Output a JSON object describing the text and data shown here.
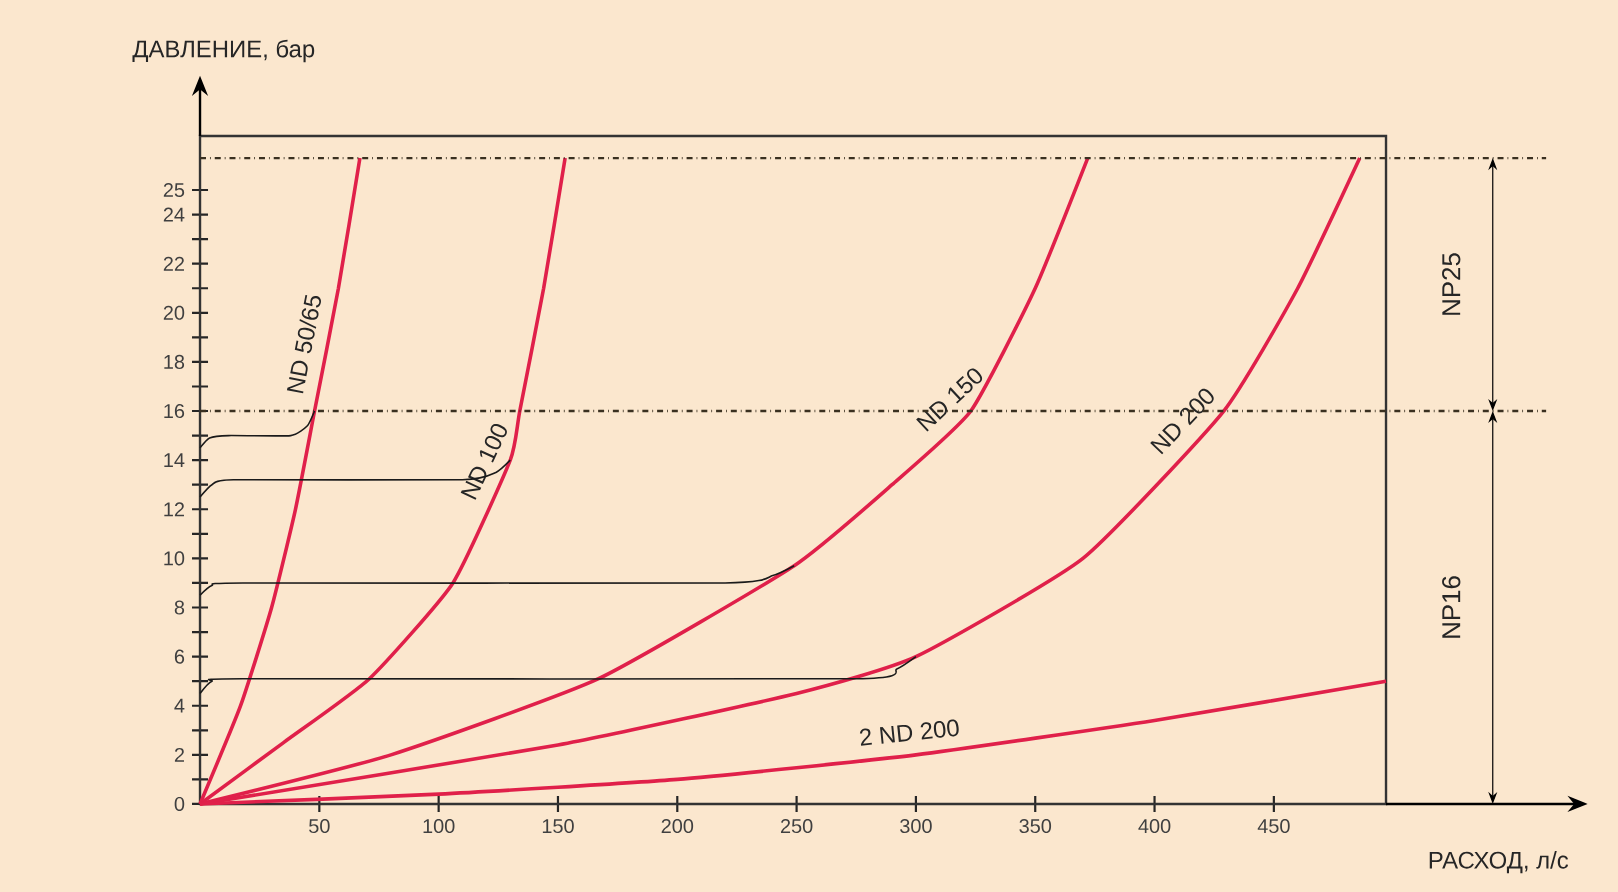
{
  "chart_data": {
    "type": "line",
    "xlabel": "РАСХОД, л/с",
    "ylabel": "ДАВЛЕНИЕ, бар",
    "xlim": [
      0,
      497
    ],
    "ylim": [
      0,
      27.2
    ],
    "xticks": [
      50,
      100,
      150,
      200,
      250,
      300,
      350,
      400,
      450
    ],
    "yticks": [
      0,
      {
        "value": 1,
        "label": null
      },
      2,
      {
        "value": 3,
        "label": null
      },
      4,
      {
        "value": 5,
        "label": null
      },
      6,
      {
        "value": 7,
        "label": null
      },
      8,
      {
        "value": 9,
        "label": null
      },
      10,
      {
        "value": 11,
        "label": null
      },
      12,
      {
        "value": 13,
        "label": null
      },
      14,
      {
        "value": 15,
        "label": null
      },
      16,
      {
        "value": 17,
        "label": null
      },
      18,
      {
        "value": 19,
        "label": null
      },
      20,
      {
        "value": 21,
        "label": null
      },
      22,
      {
        "value": 23,
        "label": null
      },
      24,
      25
    ],
    "grid": false,
    "legend": false,
    "series": [
      {
        "name": "ND 50/65",
        "color": "#e0204a",
        "x": [
          0,
          17,
          30,
          40,
          48,
          58,
          67
        ],
        "values": [
          0,
          4,
          8,
          12,
          16,
          21,
          26.3
        ]
      },
      {
        "name": "ND 100",
        "color": "#e0204a",
        "x": [
          0,
          35,
          71,
          106,
          130,
          134,
          144,
          153
        ],
        "values": [
          0,
          2.5,
          5.1,
          9,
          14,
          16,
          21,
          26.3
        ]
      },
      {
        "name": "ND 150",
        "color": "#e0204a",
        "x": [
          0,
          80,
          167,
          249,
          290,
          323,
          350,
          372
        ],
        "values": [
          0,
          2,
          5.1,
          9.7,
          13,
          16,
          21,
          26.3
        ]
      },
      {
        "name": "ND 200",
        "color": "#e0204a",
        "x": [
          0,
          150,
          250,
          300,
          370,
          429,
          460,
          486
        ],
        "values": [
          0,
          2.4,
          4.5,
          6,
          10,
          16,
          21,
          26.3
        ]
      },
      {
        "name": "2 ND 200",
        "color": "#e0204a",
        "x": [
          0,
          100,
          200,
          300,
          400,
          497
        ],
        "values": [
          0,
          0.4,
          1.0,
          2.0,
          3.4,
          5.0
        ]
      },
      {
        "color": "#1a1a1a",
        "x": [
          0,
          4,
          12,
          38,
          45,
          48
        ],
        "values": [
          14.5,
          14.9,
          15,
          15,
          15.4,
          16
        ]
      },
      {
        "color": "#1a1a1a",
        "x": [
          0,
          5,
          14,
          110,
          124,
          130
        ],
        "values": [
          12.5,
          13.0,
          13.2,
          13.2,
          13.5,
          14
        ]
      },
      {
        "color": "#1a1a1a",
        "x": [
          0,
          5,
          18,
          220,
          240,
          249
        ],
        "values": [
          8.5,
          8.9,
          9,
          9,
          9.3,
          9.7
        ]
      },
      {
        "color": "#1a1a1a",
        "x": [
          0,
          5,
          18,
          275,
          292,
          300
        ],
        "values": [
          4.5,
          5.0,
          5.1,
          5.1,
          5.5,
          6
        ]
      }
    ],
    "ref_lines": [
      {
        "axis": "y",
        "value": 16,
        "line_style": "dashdot",
        "color": "#3a3020"
      },
      {
        "axis": "y",
        "value": 26.3,
        "line_style": "dashdot",
        "color": "#3a3020"
      }
    ],
    "annotations": [
      "NP25",
      "NP16"
    ]
  }
}
